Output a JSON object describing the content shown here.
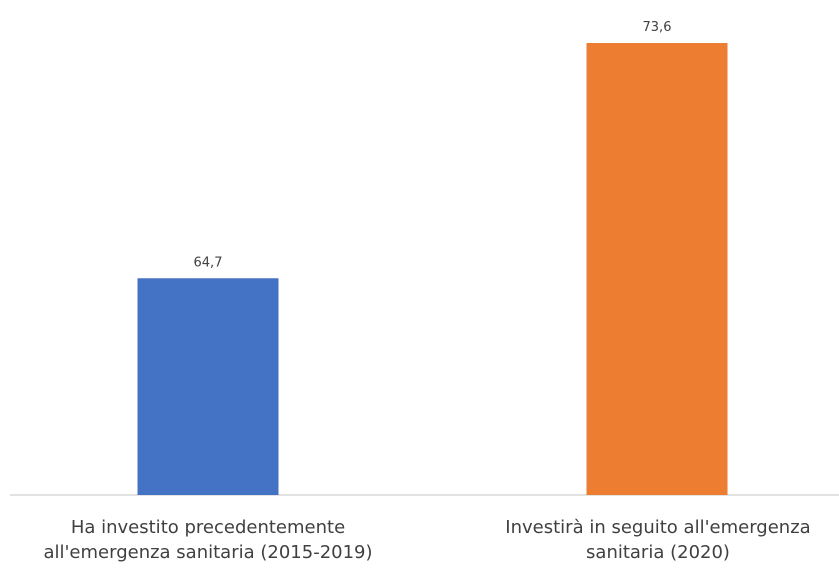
{
  "chart_data": {
    "type": "bar",
    "title": "",
    "xlabel": "",
    "ylabel": "",
    "categories": [
      "Ha investito precedentemente all'emergenza sanitaria (2015-2019)",
      "Investirà in seguito all'emergenza sanitaria (2020)"
    ],
    "values": [
      64.7,
      73.6
    ],
    "value_labels": [
      "64,7",
      "73,6"
    ],
    "colors": [
      "#4472C4",
      "#ED7D31"
    ],
    "ylim": [
      56.5,
      75
    ],
    "grid": false,
    "legend": "none"
  }
}
